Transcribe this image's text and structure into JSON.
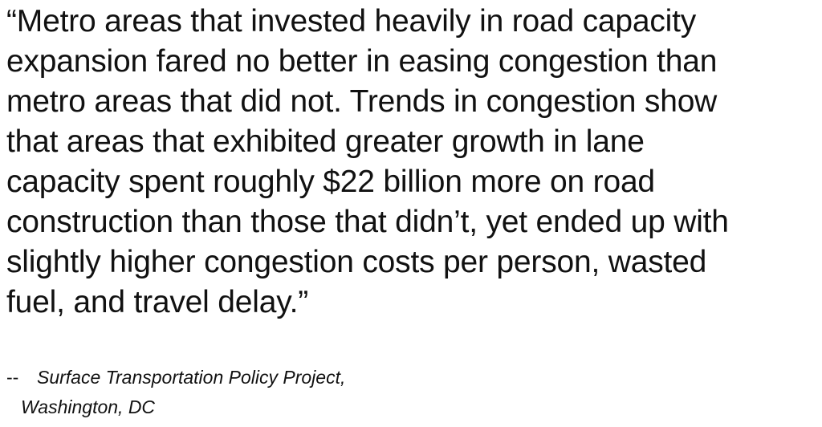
{
  "quote": {
    "lines": [
      "“Metro areas that invested heavily in road capacity",
      "expansion fared no better in easing congestion than",
      "metro areas that did not. Trends in congestion show",
      "that areas that exhibited greater growth in lane",
      "capacity spent roughly $22 billion more on road",
      "construction than those that didn’t, yet ended up with",
      "slightly higher congestion costs per person, wasted",
      "fuel, and travel delay.”"
    ]
  },
  "attribution": {
    "dash": "--",
    "lines": [
      "Surface Transportation Policy Project,",
      "Washington, DC"
    ]
  }
}
